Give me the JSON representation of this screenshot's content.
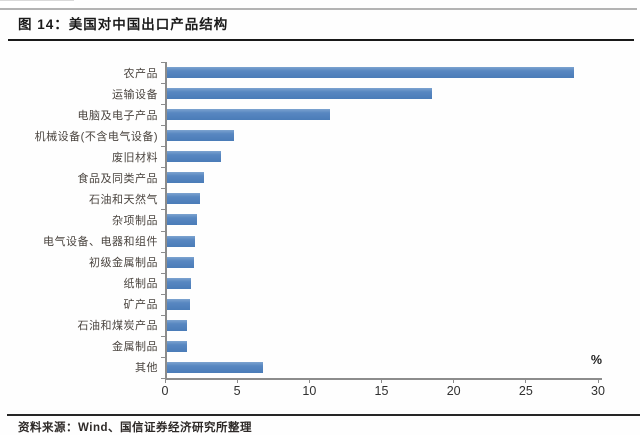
{
  "header": {
    "title": "图 14：美国对中国出口产品结构"
  },
  "chart_data": {
    "type": "bar",
    "orientation": "horizontal",
    "title": "美国对中国出口产品结构",
    "unit_label": "%",
    "categories": [
      "农产品",
      "运输设备",
      "电脑及电子产品",
      "机械设备(不含电气设备)",
      "废旧材料",
      "食品及同类产品",
      "石油和天然气",
      "杂项制品",
      "电气设备、电器和组件",
      "初级金属制品",
      "纸制品",
      "矿产品",
      "石油和煤炭产品",
      "金属制品",
      "其他"
    ],
    "values": [
      28.3,
      18.5,
      11.4,
      4.8,
      3.9,
      2.7,
      2.4,
      2.2,
      2.1,
      2.0,
      1.8,
      1.7,
      1.5,
      1.5,
      6.8
    ],
    "xlim": [
      0,
      30
    ],
    "x_ticks": [
      0,
      5,
      10,
      15,
      20,
      25,
      30
    ],
    "bar_color": "#4f81bd",
    "bar_color_light": "#7da3d0",
    "axis_color": "#8c8c8c",
    "grid": false,
    "legend": false
  },
  "footer": {
    "source": "资料来源：Wind、国信证券经济研究所整理"
  }
}
